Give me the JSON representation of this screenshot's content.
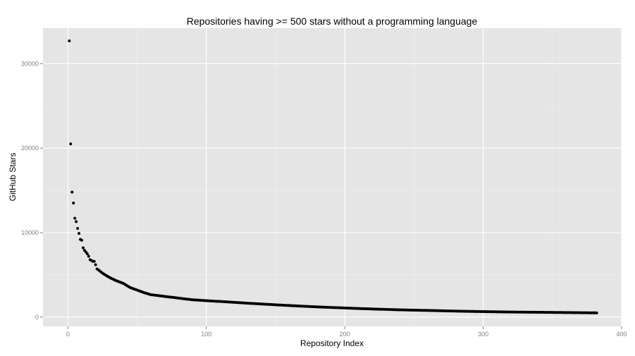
{
  "colors": {
    "panel_background": "#e5e5e5",
    "major_grid": "#ffffff",
    "minor_grid": "#f0f0f0",
    "points": "#000000",
    "tick_text": "#7f7f7f"
  },
  "chart_data": {
    "type": "scatter",
    "title": "Repositories having >= 500 stars without a programming language",
    "xlabel": "Repository Index",
    "ylabel": "GitHub Stars",
    "xlim": [
      -18,
      400
    ],
    "ylim": [
      -1100,
      34200
    ],
    "x_ticks": [
      0,
      100,
      200,
      300,
      400
    ],
    "y_ticks": [
      0,
      10000,
      20000,
      30000
    ],
    "grid": true,
    "point_count": 382,
    "points_sample": [
      [
        1,
        32700
      ],
      [
        2,
        20500
      ],
      [
        3,
        14800
      ],
      [
        4,
        13500
      ],
      [
        5,
        11700
      ],
      [
        6,
        11300
      ],
      [
        7,
        10500
      ],
      [
        8,
        9900
      ],
      [
        9,
        9200
      ],
      [
        10,
        9100
      ],
      [
        11,
        8200
      ],
      [
        12,
        7900
      ],
      [
        13,
        7700
      ],
      [
        14,
        7500
      ],
      [
        15,
        7200
      ],
      [
        16,
        6800
      ],
      [
        17,
        6700
      ],
      [
        18,
        6600
      ],
      [
        19,
        6600
      ],
      [
        20,
        6200
      ],
      [
        21,
        5700
      ],
      [
        22,
        5600
      ],
      [
        25,
        5200
      ],
      [
        30,
        4700
      ],
      [
        35,
        4300
      ],
      [
        40,
        4000
      ],
      [
        45,
        3500
      ],
      [
        50,
        3200
      ],
      [
        55,
        2900
      ],
      [
        60,
        2650
      ],
      [
        70,
        2450
      ],
      [
        80,
        2250
      ],
      [
        90,
        2050
      ],
      [
        100,
        1950
      ],
      [
        120,
        1750
      ],
      [
        140,
        1550
      ],
      [
        160,
        1370
      ],
      [
        180,
        1210
      ],
      [
        200,
        1080
      ],
      [
        220,
        960
      ],
      [
        240,
        860
      ],
      [
        260,
        790
      ],
      [
        280,
        710
      ],
      [
        300,
        650
      ],
      [
        320,
        600
      ],
      [
        340,
        570
      ],
      [
        360,
        540
      ],
      [
        382,
        500
      ]
    ]
  }
}
